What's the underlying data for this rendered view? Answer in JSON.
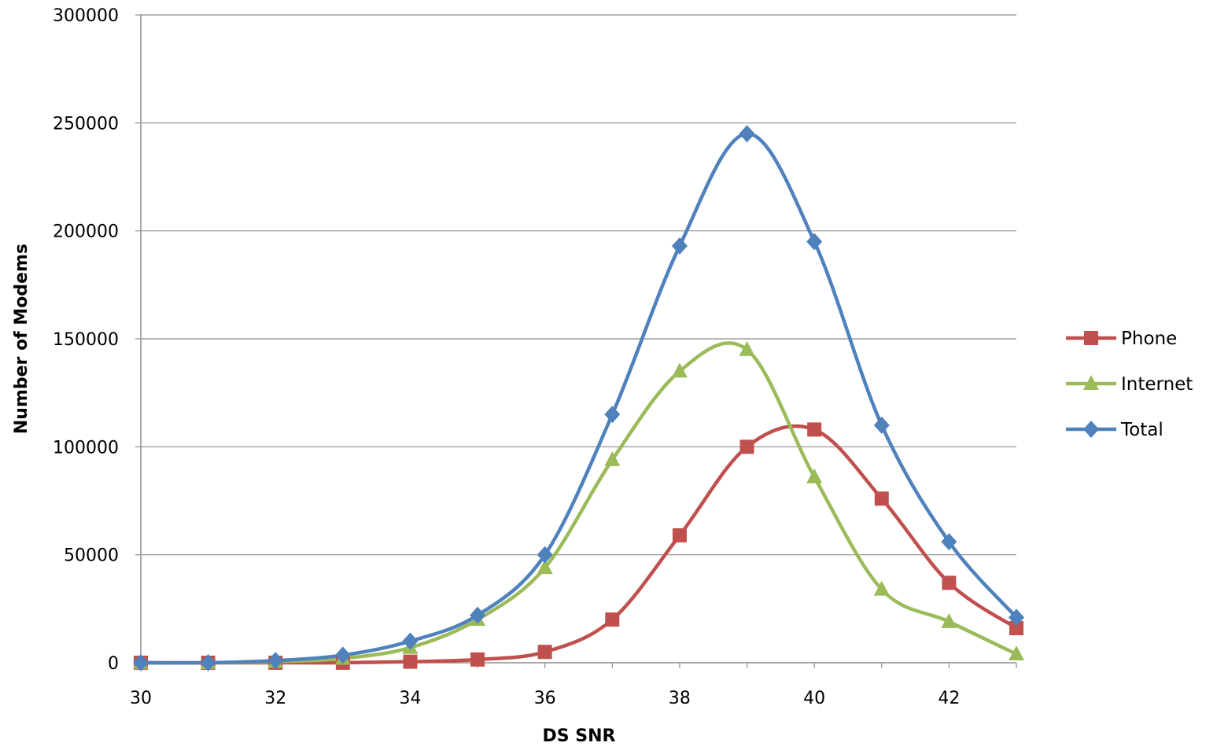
{
  "chart_data": {
    "type": "line",
    "title": "",
    "xlabel": "DS SNR",
    "ylabel": "Number of Modems",
    "x": [
      30,
      31,
      32,
      33,
      34,
      35,
      36,
      37,
      38,
      39,
      40,
      41,
      42,
      43
    ],
    "xlim": [
      30,
      43
    ],
    "ylim": [
      0,
      300000
    ],
    "x_ticks": [
      "30",
      "32",
      "34",
      "36",
      "38",
      "40",
      "42"
    ],
    "y_ticks": [
      "0",
      "50000",
      "100000",
      "150000",
      "200000",
      "250000",
      "300000"
    ],
    "grid": "horizontal",
    "smooth": true,
    "legend_position": "right",
    "series": [
      {
        "name": "Phone",
        "color": "#c0504d",
        "marker": "square",
        "values": [
          0,
          0,
          0,
          0,
          500,
          1500,
          5000,
          20000,
          59000,
          100000,
          108000,
          76000,
          37000,
          16000
        ]
      },
      {
        "name": "Internet",
        "color": "#9bbb59",
        "marker": "triangle",
        "values": [
          0,
          0,
          500,
          2000,
          7000,
          20000,
          44000,
          94000,
          135000,
          145000,
          86000,
          34000,
          19000,
          4000
        ]
      },
      {
        "name": "Total",
        "color": "#4f81bd",
        "marker": "diamond",
        "values": [
          0,
          0,
          1000,
          3500,
          10000,
          22000,
          50000,
          115000,
          193000,
          245000,
          195000,
          110000,
          56000,
          21000
        ]
      }
    ]
  }
}
